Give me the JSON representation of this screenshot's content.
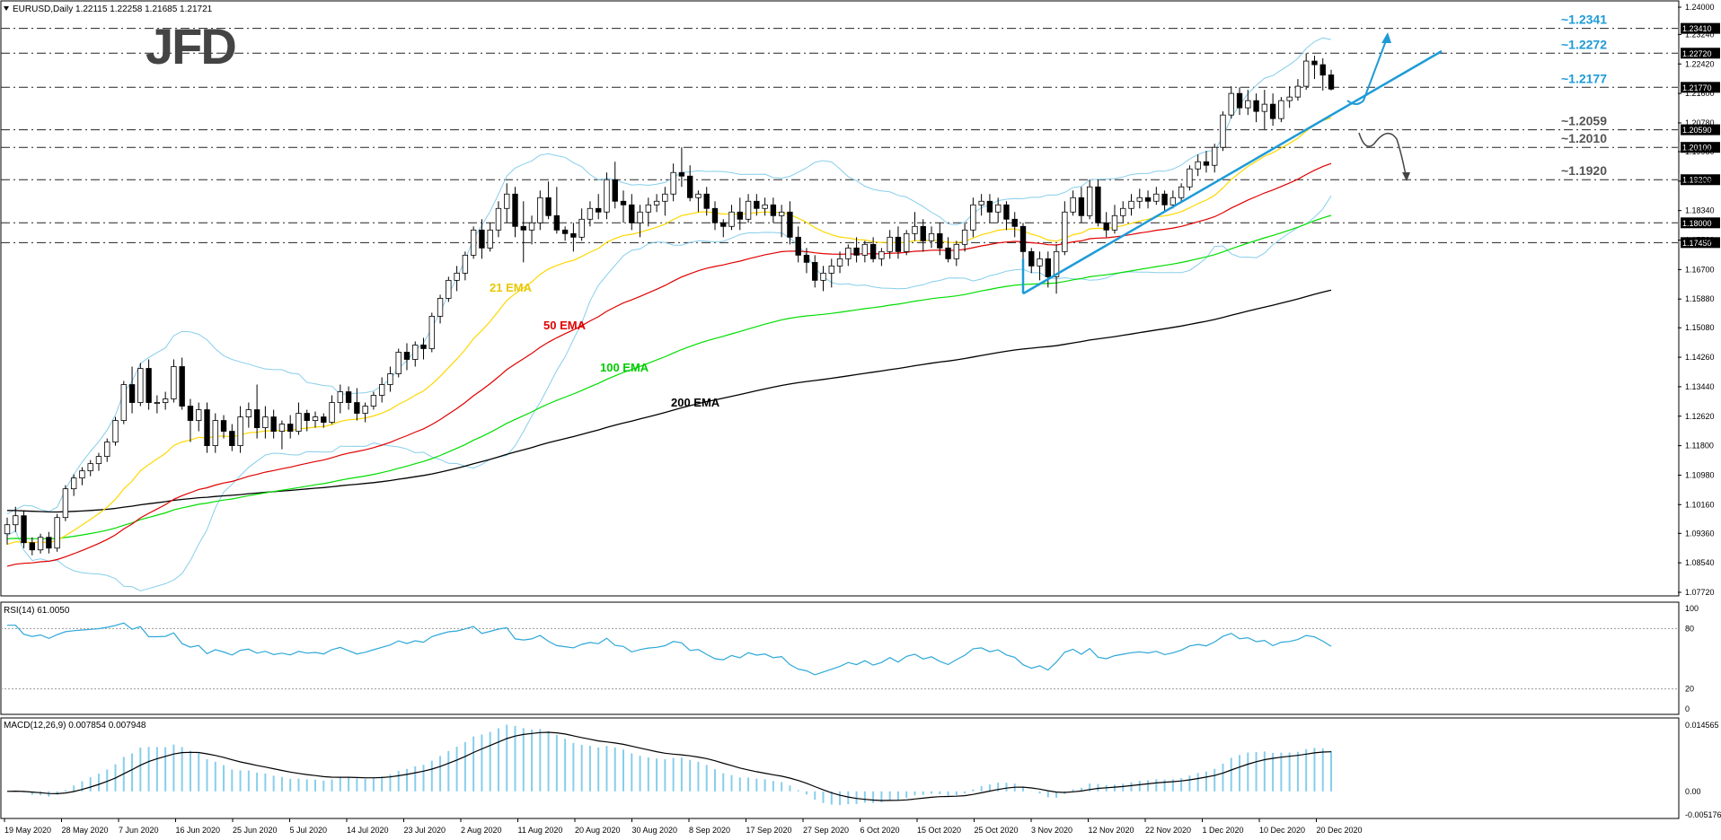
{
  "symbol_header": "EURUSD,Daily  1.22115 1.22258 1.21685 1.21721",
  "logo": "JFD",
  "colors": {
    "bull_candle": "#ffffff",
    "bear_candle": "#000000",
    "candle_outline": "#000000",
    "bollinger": "#87CEEB",
    "ema21": "#FFD700",
    "ema50": "#E00000",
    "ema100": "#00DD00",
    "ema200": "#000000",
    "annotation": "#1E9BD7",
    "level_label": "#1E9BD7",
    "level_label_dark": "#555555",
    "rsi_line": "#2EA8D8",
    "macd_hist": "#87CEEB",
    "macd_signal": "#000000"
  },
  "price_axis_labels": [
    "1.24000",
    "1.23240",
    "1.22420",
    "1.21600",
    "1.20780",
    "1.19980",
    "1.19160",
    "1.18340",
    "1.17520",
    "1.16700",
    "1.15880",
    "1.15080",
    "1.14260",
    "1.13440",
    "1.12620",
    "1.11800",
    "1.10980",
    "1.10160",
    "1.09360",
    "1.08540",
    "1.07720"
  ],
  "date_axis_labels": [
    "19 May 2020",
    "28 May 2020",
    "7 Jun 2020",
    "16 Jun 2020",
    "25 Jun 2020",
    "5 Jul 2020",
    "14 Jul 2020",
    "23 Jul 2020",
    "2 Aug 2020",
    "11 Aug 2020",
    "20 Aug 2020",
    "30 Aug 2020",
    "8 Sep 2020",
    "17 Sep 2020",
    "27 Sep 2020",
    "6 Oct 2020",
    "15 Oct 2020",
    "25 Oct 2020",
    "3 Nov 2020",
    "12 Nov 2020",
    "22 Nov 2020",
    "1 Dec 2020",
    "10 Dec 2020",
    "20 Dec 2020"
  ],
  "levels": [
    {
      "value": 1.2341,
      "axis_tag": "1.23410",
      "label": "~1.2341",
      "style": "blue"
    },
    {
      "value": 1.2272,
      "axis_tag": "1.22720",
      "label": "~1.2272",
      "style": "blue"
    },
    {
      "value": 1.2177,
      "axis_tag": "1.21770",
      "label": "~1.2177",
      "style": "blue"
    },
    {
      "value": 1.2059,
      "axis_tag": "1.20590",
      "label": "~1.2059",
      "style": "dark"
    },
    {
      "value": 1.201,
      "axis_tag": "1.20100",
      "label": "~1.2010",
      "style": "dark"
    },
    {
      "value": 1.192,
      "axis_tag": "1.19200",
      "label": "~1.1920",
      "style": "dark"
    },
    {
      "value": 1.18,
      "axis_tag": "1.18000",
      "label": "",
      "style": "none"
    },
    {
      "value": 1.1745,
      "axis_tag": "1.17450",
      "label": "",
      "style": "none"
    }
  ],
  "ema_labels": {
    "ema21": "21 EMA",
    "ema50": "50 EMA",
    "ema100": "100 EMA",
    "ema200": "200 EMA"
  },
  "rsi": {
    "header": "RSI(14) 61.0050",
    "axis_labels": [
      "100",
      "80",
      "20",
      "0"
    ],
    "levels": [
      80,
      20
    ]
  },
  "macd": {
    "header": "MACD(12,26,9) 0.007854 0.007948",
    "axis_labels": [
      "0.014565",
      "0.00",
      "-0.005176"
    ]
  },
  "chart_data": {
    "type": "candlestick",
    "title": "EURUSD,Daily",
    "price_range": [
      1.0772,
      1.24
    ],
    "x_start": "19 May 2020",
    "x_end": "20 Dec 2020",
    "last_bar": {
      "open": 1.22115,
      "high": 1.22258,
      "low": 1.21685,
      "close": 1.21721
    },
    "candles": [
      [
        1.0935,
        1.098,
        1.0905,
        1.096
      ],
      [
        1.096,
        1.101,
        1.094,
        1.0985
      ],
      [
        1.0985,
        1.1,
        1.0895,
        1.091
      ],
      [
        1.091,
        1.0925,
        1.0875,
        1.089
      ],
      [
        1.089,
        1.0935,
        1.088,
        1.0925
      ],
      [
        1.0925,
        1.094,
        1.088,
        1.0895
      ],
      [
        1.0895,
        1.099,
        1.0885,
        1.098
      ],
      [
        1.098,
        1.107,
        1.097,
        1.106
      ],
      [
        1.106,
        1.11,
        1.104,
        1.109
      ],
      [
        1.109,
        1.112,
        1.107,
        1.111
      ],
      [
        1.111,
        1.114,
        1.1095,
        1.113
      ],
      [
        1.113,
        1.116,
        1.111,
        1.115
      ],
      [
        1.115,
        1.12,
        1.1135,
        1.119
      ],
      [
        1.119,
        1.126,
        1.118,
        1.125
      ],
      [
        1.125,
        1.136,
        1.124,
        1.135
      ],
      [
        1.135,
        1.14,
        1.127,
        1.13
      ],
      [
        1.13,
        1.141,
        1.129,
        1.1395
      ],
      [
        1.1395,
        1.142,
        1.128,
        1.13
      ],
      [
        1.13,
        1.132,
        1.127,
        1.13
      ],
      [
        1.13,
        1.133,
        1.128,
        1.131
      ],
      [
        1.131,
        1.142,
        1.13,
        1.14
      ],
      [
        1.14,
        1.1425,
        1.128,
        1.129
      ],
      [
        1.129,
        1.131,
        1.119,
        1.125
      ],
      [
        1.125,
        1.13,
        1.122,
        1.128
      ],
      [
        1.128,
        1.13,
        1.116,
        1.118
      ],
      [
        1.118,
        1.127,
        1.116,
        1.125
      ],
      [
        1.125,
        1.1265,
        1.12,
        1.122
      ],
      [
        1.122,
        1.124,
        1.1165,
        1.118
      ],
      [
        1.118,
        1.129,
        1.116,
        1.126
      ],
      [
        1.126,
        1.13,
        1.123,
        1.128
      ],
      [
        1.128,
        1.135,
        1.12,
        1.123
      ],
      [
        1.123,
        1.129,
        1.12,
        1.126
      ],
      [
        1.126,
        1.128,
        1.12,
        1.122
      ],
      [
        1.122,
        1.125,
        1.117,
        1.124
      ],
      [
        1.124,
        1.1265,
        1.12,
        1.122
      ],
      [
        1.122,
        1.13,
        1.121,
        1.127
      ],
      [
        1.127,
        1.128,
        1.122,
        1.125
      ],
      [
        1.125,
        1.1275,
        1.123,
        1.126
      ],
      [
        1.126,
        1.127,
        1.123,
        1.1245
      ],
      [
        1.1245,
        1.132,
        1.124,
        1.13
      ],
      [
        1.13,
        1.135,
        1.127,
        1.133
      ],
      [
        1.133,
        1.1345,
        1.128,
        1.13
      ],
      [
        1.13,
        1.134,
        1.125,
        1.127
      ],
      [
        1.127,
        1.13,
        1.1245,
        1.129
      ],
      [
        1.129,
        1.133,
        1.128,
        1.132
      ],
      [
        1.132,
        1.137,
        1.13,
        1.135
      ],
      [
        1.135,
        1.14,
        1.133,
        1.138
      ],
      [
        1.138,
        1.145,
        1.137,
        1.144
      ],
      [
        1.144,
        1.1465,
        1.139,
        1.142
      ],
      [
        1.142,
        1.147,
        1.14,
        1.146
      ],
      [
        1.146,
        1.148,
        1.142,
        1.145
      ],
      [
        1.145,
        1.155,
        1.144,
        1.154
      ],
      [
        1.154,
        1.16,
        1.152,
        1.159
      ],
      [
        1.159,
        1.165,
        1.158,
        1.164
      ],
      [
        1.164,
        1.168,
        1.161,
        1.166
      ],
      [
        1.166,
        1.172,
        1.164,
        1.171
      ],
      [
        1.171,
        1.179,
        1.17,
        1.178
      ],
      [
        1.178,
        1.181,
        1.17,
        1.173
      ],
      [
        1.173,
        1.18,
        1.172,
        1.178
      ],
      [
        1.178,
        1.186,
        1.176,
        1.184
      ],
      [
        1.184,
        1.191,
        1.18,
        1.188
      ],
      [
        1.188,
        1.19,
        1.176,
        1.179
      ],
      [
        1.179,
        1.186,
        1.169,
        1.178
      ],
      [
        1.178,
        1.182,
        1.174,
        1.18
      ],
      [
        1.18,
        1.189,
        1.178,
        1.187
      ],
      [
        1.187,
        1.1915,
        1.181,
        1.182
      ],
      [
        1.182,
        1.19,
        1.177,
        1.178
      ],
      [
        1.178,
        1.179,
        1.175,
        1.177
      ],
      [
        1.177,
        1.18,
        1.172,
        1.176
      ],
      [
        1.176,
        1.184,
        1.175,
        1.181
      ],
      [
        1.181,
        1.186,
        1.179,
        1.184
      ],
      [
        1.184,
        1.188,
        1.181,
        1.183
      ],
      [
        1.183,
        1.194,
        1.181,
        1.192
      ],
      [
        1.192,
        1.197,
        1.184,
        1.186
      ],
      [
        1.186,
        1.189,
        1.18,
        1.185
      ],
      [
        1.185,
        1.188,
        1.178,
        1.18
      ],
      [
        1.18,
        1.185,
        1.176,
        1.183
      ],
      [
        1.183,
        1.187,
        1.179,
        1.185
      ],
      [
        1.185,
        1.188,
        1.183,
        1.186
      ],
      [
        1.186,
        1.19,
        1.182,
        1.188
      ],
      [
        1.188,
        1.1965,
        1.186,
        1.194
      ],
      [
        1.194,
        1.201,
        1.19,
        1.193
      ],
      [
        1.193,
        1.196,
        1.186,
        1.187
      ],
      [
        1.187,
        1.189,
        1.183,
        1.188
      ],
      [
        1.188,
        1.19,
        1.182,
        1.184
      ],
      [
        1.184,
        1.186,
        1.178,
        1.18
      ],
      [
        1.18,
        1.181,
        1.176,
        1.179
      ],
      [
        1.179,
        1.185,
        1.178,
        1.183
      ],
      [
        1.183,
        1.187,
        1.178,
        1.181
      ],
      [
        1.181,
        1.188,
        1.18,
        1.186
      ],
      [
        1.186,
        1.188,
        1.182,
        1.184
      ],
      [
        1.184,
        1.187,
        1.182,
        1.185
      ],
      [
        1.185,
        1.187,
        1.18,
        1.182
      ],
      [
        1.182,
        1.185,
        1.176,
        1.183
      ],
      [
        1.183,
        1.186,
        1.174,
        1.176
      ],
      [
        1.176,
        1.179,
        1.169,
        1.171
      ],
      [
        1.171,
        1.173,
        1.166,
        1.169
      ],
      [
        1.169,
        1.171,
        1.162,
        1.164
      ],
      [
        1.164,
        1.168,
        1.161,
        1.166
      ],
      [
        1.166,
        1.17,
        1.162,
        1.168
      ],
      [
        1.168,
        1.172,
        1.166,
        1.17
      ],
      [
        1.17,
        1.174,
        1.168,
        1.173
      ],
      [
        1.173,
        1.176,
        1.169,
        1.171
      ],
      [
        1.171,
        1.175,
        1.169,
        1.174
      ],
      [
        1.174,
        1.176,
        1.169,
        1.17
      ],
      [
        1.17,
        1.173,
        1.168,
        1.172
      ],
      [
        1.172,
        1.178,
        1.17,
        1.176
      ],
      [
        1.176,
        1.179,
        1.17,
        1.172
      ],
      [
        1.172,
        1.178,
        1.171,
        1.177
      ],
      [
        1.177,
        1.183,
        1.175,
        1.179
      ],
      [
        1.179,
        1.181,
        1.172,
        1.175
      ],
      [
        1.175,
        1.179,
        1.173,
        1.177
      ],
      [
        1.177,
        1.18,
        1.171,
        1.173
      ],
      [
        1.173,
        1.176,
        1.169,
        1.17
      ],
      [
        1.17,
        1.175,
        1.168,
        1.174
      ],
      [
        1.174,
        1.18,
        1.172,
        1.178
      ],
      [
        1.178,
        1.187,
        1.176,
        1.185
      ],
      [
        1.185,
        1.188,
        1.182,
        1.186
      ],
      [
        1.186,
        1.188,
        1.18,
        1.183
      ],
      [
        1.183,
        1.187,
        1.18,
        1.185
      ],
      [
        1.185,
        1.186,
        1.178,
        1.181
      ],
      [
        1.181,
        1.183,
        1.176,
        1.179
      ],
      [
        1.179,
        1.18,
        1.17,
        1.172
      ],
      [
        1.172,
        1.173,
        1.166,
        1.168
      ],
      [
        1.168,
        1.172,
        1.164,
        1.17
      ],
      [
        1.17,
        1.172,
        1.162,
        1.165
      ],
      [
        1.165,
        1.174,
        1.1603,
        1.172
      ],
      [
        1.172,
        1.186,
        1.171,
        1.183
      ],
      [
        1.183,
        1.189,
        1.182,
        1.187
      ],
      [
        1.187,
        1.19,
        1.18,
        1.182
      ],
      [
        1.182,
        1.192,
        1.181,
        1.19
      ],
      [
        1.19,
        1.192,
        1.179,
        1.18
      ],
      [
        1.18,
        1.183,
        1.176,
        1.178
      ],
      [
        1.178,
        1.185,
        1.177,
        1.182
      ],
      [
        1.182,
        1.186,
        1.18,
        1.184
      ],
      [
        1.184,
        1.188,
        1.182,
        1.186
      ],
      [
        1.186,
        1.1895,
        1.184,
        1.187
      ],
      [
        1.187,
        1.189,
        1.184,
        1.186
      ],
      [
        1.186,
        1.19,
        1.185,
        1.188
      ],
      [
        1.188,
        1.189,
        1.183,
        1.185
      ],
      [
        1.185,
        1.189,
        1.184,
        1.187
      ],
      [
        1.187,
        1.191,
        1.186,
        1.19
      ],
      [
        1.19,
        1.196,
        1.189,
        1.195
      ],
      [
        1.195,
        1.199,
        1.193,
        1.197
      ],
      [
        1.197,
        1.2,
        1.194,
        1.196
      ],
      [
        1.196,
        1.202,
        1.194,
        1.201
      ],
      [
        1.201,
        1.211,
        1.2,
        1.21
      ],
      [
        1.21,
        1.218,
        1.209,
        1.216
      ],
      [
        1.216,
        1.2177,
        1.21,
        1.212
      ],
      [
        1.212,
        1.217,
        1.21,
        1.214
      ],
      [
        1.214,
        1.216,
        1.208,
        1.211
      ],
      [
        1.211,
        1.217,
        1.206,
        1.213
      ],
      [
        1.213,
        1.216,
        1.207,
        1.209
      ],
      [
        1.209,
        1.215,
        1.208,
        1.214
      ],
      [
        1.214,
        1.218,
        1.212,
        1.215
      ],
      [
        1.215,
        1.22,
        1.214,
        1.218
      ],
      [
        1.218,
        1.2272,
        1.217,
        1.225
      ],
      [
        1.225,
        1.2265,
        1.22,
        1.224
      ],
      [
        1.224,
        1.2258,
        1.2168,
        1.2211
      ],
      [
        1.22115,
        1.22258,
        1.21685,
        1.21721
      ]
    ],
    "series": [
      {
        "name": "21 EMA"
      },
      {
        "name": "50 EMA"
      },
      {
        "name": "100 EMA"
      },
      {
        "name": "200 EMA"
      }
    ]
  }
}
